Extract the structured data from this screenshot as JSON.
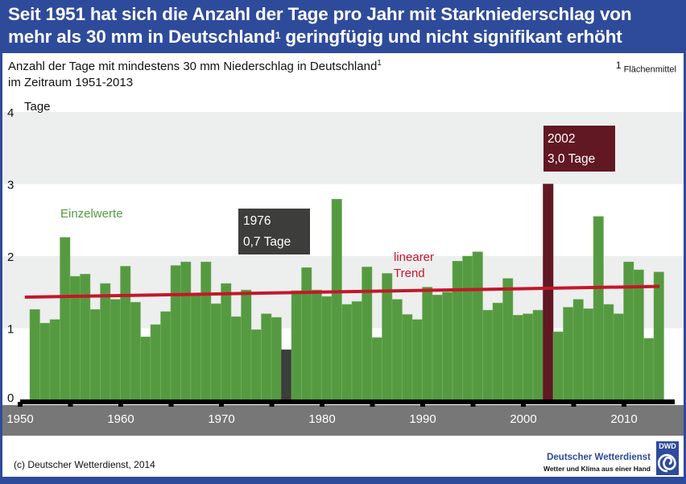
{
  "header": {
    "title_line1": "Seit 1951 hat sich die Anzahl der Tage pro Jahr mit Starkniederschlag von",
    "title_line2_a": "mehr als 30 mm in Deutschland",
    "title_line2_sup": "1",
    "title_line2_b": " geringfügig und nicht signifikant erhöht"
  },
  "subtitle": {
    "line1": "Anzahl der Tage mit mindestens 30 mm Niederschlag in Deutschland",
    "line1_sup": "1",
    "line2": "im Zeitraum 1951-2013"
  },
  "footnote": {
    "marker": "1",
    "text": "Flächenmittel"
  },
  "footer": {
    "copyright": "(c) Deutscher Wetterdienst, 2014",
    "logo_abbr": "DWD",
    "logo_name": "Deutscher Wetterdienst",
    "logo_slogan": "Wetter und Klima aus einer Hand"
  },
  "colors": {
    "brand_blue": "#2E4B9B",
    "bar_green": "#559A40",
    "bar_min": "#3D3D3B",
    "bar_max": "#611823",
    "trend_red": "#C3172A",
    "band_gray": "#EDEEEE",
    "axis_band": "#777777"
  },
  "chart_data": {
    "type": "bar",
    "title": "Anzahl der Tage mit mindestens 30 mm Niederschlag in Deutschland",
    "ylabel": "Tage",
    "xlabel": "",
    "ylim": [
      0,
      4
    ],
    "xlim": [
      1950,
      2014
    ],
    "yticks": [
      "0",
      "1",
      "2",
      "3",
      "4"
    ],
    "xticks": [
      "1950",
      "1960",
      "1970",
      "1980",
      "1990",
      "2000",
      "2010"
    ],
    "x": [
      1951,
      1952,
      1953,
      1954,
      1955,
      1956,
      1957,
      1958,
      1959,
      1960,
      1961,
      1962,
      1963,
      1964,
      1965,
      1966,
      1967,
      1968,
      1969,
      1970,
      1971,
      1972,
      1973,
      1974,
      1975,
      1976,
      1977,
      1978,
      1979,
      1980,
      1981,
      1982,
      1983,
      1984,
      1985,
      1986,
      1987,
      1988,
      1989,
      1990,
      1991,
      1992,
      1993,
      1994,
      1995,
      1996,
      1997,
      1998,
      1999,
      2000,
      2001,
      2002,
      2003,
      2004,
      2005,
      2006,
      2007,
      2008,
      2009,
      2010,
      2011,
      2012,
      2013
    ],
    "series": [
      {
        "name": "Einzelwerte",
        "values": [
          1.26,
          1.07,
          1.12,
          2.26,
          1.72,
          1.75,
          1.26,
          1.62,
          1.4,
          1.86,
          1.36,
          0.88,
          1.05,
          1.23,
          1.87,
          1.92,
          1.47,
          1.92,
          1.34,
          1.62,
          1.16,
          1.53,
          0.98,
          1.2,
          1.15,
          0.7,
          1.52,
          1.84,
          1.53,
          1.44,
          2.79,
          1.33,
          1.37,
          1.85,
          0.87,
          1.76,
          1.4,
          1.19,
          1.12,
          1.57,
          1.46,
          1.5,
          1.93,
          2.0,
          2.06,
          1.25,
          1.35,
          1.69,
          1.18,
          1.2,
          1.25,
          3.0,
          0.95,
          1.29,
          1.4,
          1.27,
          2.55,
          1.33,
          1.2,
          1.92,
          1.81,
          0.86,
          1.78
        ]
      },
      {
        "name": "linearer Trend",
        "type": "line",
        "points": [
          [
            1950.5,
            1.43
          ],
          [
            2013.5,
            1.58
          ]
        ]
      }
    ],
    "legend": [
      "Einzelwerte",
      "linearer Trend"
    ],
    "annotations": [
      {
        "year": "1976",
        "value_label": "0,7 Tage",
        "kind": "min"
      },
      {
        "year": "2002",
        "value_label": "3,0 Tage",
        "kind": "max"
      }
    ],
    "legend_labels": {
      "einzelwerte": "Einzelwerte",
      "trend_line1": "linearer",
      "trend_line2": "Trend"
    },
    "grid_bands": true
  }
}
